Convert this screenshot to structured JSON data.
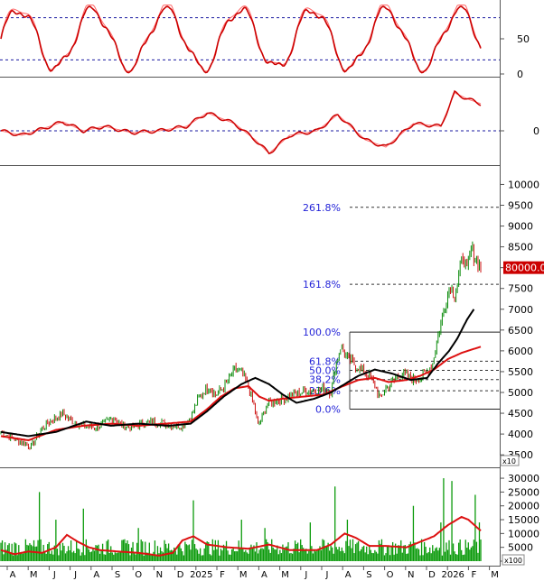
{
  "chart_data": {
    "type": "candlestick",
    "colors": {
      "up": "#0a8a0a",
      "down": "#cc1111",
      "ma_fast": "#dd1111",
      "ma_slow": "#000000",
      "volume": "#0a9a0a",
      "volume_ma": "#dd1111",
      "fib": "#2323d8",
      "guide": "#1a1aa0",
      "price_tag_bg": "#cc0000",
      "price_tag_text": "#ffffff"
    },
    "x_axis": {
      "labels": [
        "A",
        "M",
        "J",
        "J",
        "A",
        "S",
        "O",
        "N",
        "D",
        "2025",
        "F",
        "M",
        "A",
        "M",
        "J",
        "J",
        "A",
        "S",
        "O",
        "N",
        "D",
        "2026",
        "F",
        "M"
      ]
    },
    "stochastic": {
      "ylim": [
        0,
        100
      ],
      "ticks": [
        "50",
        "0"
      ],
      "guides": [
        80,
        20
      ]
    },
    "oscillator": {
      "ticks": [
        "0"
      ]
    },
    "price": {
      "ylim": [
        3200,
        10400
      ],
      "ticks": [
        "10000",
        "9500",
        "9000",
        "8500",
        "8000",
        "7500",
        "7000",
        "6500",
        "6000",
        "5500",
        "5000",
        "4500",
        "4000",
        "3500"
      ],
      "multiplier_label": "x10",
      "last_price_label": "80000.00",
      "last_price": 8000,
      "fib_levels": [
        {
          "label": "261.8%",
          "value": 9450
        },
        {
          "label": "161.8%",
          "value": 7600
        },
        {
          "label": "100.0%",
          "value": 6450
        },
        {
          "label": "61.8%",
          "value": 5750
        },
        {
          "label": "50.0%",
          "value": 5530
        },
        {
          "label": "38.2%",
          "value": 5310
        },
        {
          "label": "23.6%",
          "value": 5040
        },
        {
          "label": "0.0%",
          "value": 4600
        }
      ],
      "close_anchors": [
        [
          0,
          4050
        ],
        [
          12,
          3850
        ],
        [
          22,
          3700
        ],
        [
          30,
          4150
        ],
        [
          38,
          4350
        ],
        [
          45,
          4500
        ],
        [
          52,
          4300
        ],
        [
          60,
          4200
        ],
        [
          68,
          4150
        ],
        [
          75,
          4250
        ],
        [
          82,
          4400
        ],
        [
          88,
          4200
        ],
        [
          95,
          4150
        ],
        [
          102,
          4250
        ],
        [
          110,
          4300
        ],
        [
          118,
          4250
        ],
        [
          126,
          4200
        ],
        [
          132,
          4200
        ],
        [
          138,
          4400
        ],
        [
          143,
          4800
        ],
        [
          148,
          5050
        ],
        [
          152,
          5150
        ],
        [
          156,
          4950
        ],
        [
          160,
          5050
        ],
        [
          165,
          5250
        ],
        [
          170,
          5550
        ],
        [
          176,
          5450
        ],
        [
          180,
          5100
        ],
        [
          184,
          4700
        ],
        [
          187,
          4200
        ],
        [
          190,
          4400
        ],
        [
          194,
          4750
        ],
        [
          200,
          4800
        ],
        [
          206,
          4850
        ],
        [
          212,
          4950
        ],
        [
          218,
          5000
        ],
        [
          224,
          5050
        ],
        [
          230,
          5050
        ],
        [
          235,
          5100
        ],
        [
          240,
          5000
        ],
        [
          243,
          5600
        ],
        [
          247,
          6100
        ],
        [
          251,
          5850
        ],
        [
          256,
          5700
        ],
        [
          262,
          5550
        ],
        [
          268,
          5400
        ],
        [
          272,
          5150
        ],
        [
          276,
          4850
        ],
        [
          280,
          5100
        ],
        [
          285,
          5250
        ],
        [
          290,
          5450
        ],
        [
          295,
          5400
        ],
        [
          300,
          5300
        ],
        [
          305,
          5350
        ],
        [
          310,
          5500
        ],
        [
          314,
          5700
        ],
        [
          318,
          6400
        ],
        [
          321,
          6800
        ],
        [
          324,
          7200
        ],
        [
          327,
          7600
        ],
        [
          330,
          7300
        ],
        [
          333,
          7800
        ],
        [
          336,
          8300
        ],
        [
          339,
          7900
        ],
        [
          342,
          8450
        ],
        [
          345,
          8200
        ],
        [
          349,
          8000
        ]
      ],
      "ma_fast_anchors": [
        [
          0,
          3950
        ],
        [
          20,
          3850
        ],
        [
          40,
          4100
        ],
        [
          60,
          4200
        ],
        [
          80,
          4250
        ],
        [
          100,
          4200
        ],
        [
          120,
          4250
        ],
        [
          138,
          4300
        ],
        [
          150,
          4600
        ],
        [
          160,
          4900
        ],
        [
          170,
          5100
        ],
        [
          180,
          5150
        ],
        [
          188,
          4900
        ],
        [
          195,
          4800
        ],
        [
          205,
          4850
        ],
        [
          220,
          4900
        ],
        [
          235,
          4950
        ],
        [
          245,
          5100
        ],
        [
          260,
          5300
        ],
        [
          272,
          5350
        ],
        [
          282,
          5250
        ],
        [
          295,
          5300
        ],
        [
          305,
          5400
        ],
        [
          315,
          5550
        ],
        [
          325,
          5800
        ],
        [
          335,
          5950
        ],
        [
          349,
          6100
        ]
      ],
      "ma_slow_anchors": [
        [
          0,
          4050
        ],
        [
          20,
          3950
        ],
        [
          40,
          4050
        ],
        [
          62,
          4300
        ],
        [
          80,
          4200
        ],
        [
          100,
          4250
        ],
        [
          122,
          4200
        ],
        [
          138,
          4250
        ],
        [
          150,
          4550
        ],
        [
          162,
          4900
        ],
        [
          175,
          5200
        ],
        [
          185,
          5350
        ],
        [
          195,
          5200
        ],
        [
          205,
          4950
        ],
        [
          215,
          4750
        ],
        [
          228,
          4850
        ],
        [
          240,
          5000
        ],
        [
          250,
          5200
        ],
        [
          260,
          5400
        ],
        [
          272,
          5550
        ],
        [
          285,
          5450
        ],
        [
          298,
          5300
        ],
        [
          310,
          5350
        ],
        [
          318,
          5700
        ],
        [
          326,
          6000
        ],
        [
          332,
          6300
        ],
        [
          339,
          6750
        ],
        [
          344,
          7000
        ]
      ]
    },
    "volume": {
      "ylim": [
        0,
        31000
      ],
      "ticks": [
        "30000",
        "25000",
        "20000",
        "15000",
        "10000",
        "5000",
        "0"
      ],
      "multiplier_label": "x100",
      "spikes": [
        [
          28,
          25000
        ],
        [
          40,
          15000
        ],
        [
          60,
          19000
        ],
        [
          100,
          12000
        ],
        [
          140,
          22000
        ],
        [
          175,
          15000
        ],
        [
          192,
          12000
        ],
        [
          225,
          14000
        ],
        [
          243,
          27000
        ],
        [
          252,
          15000
        ],
        [
          300,
          20000
        ],
        [
          320,
          14000
        ],
        [
          322,
          30000
        ],
        [
          328,
          29000
        ],
        [
          345,
          24000
        ],
        [
          348,
          14000
        ]
      ],
      "ma_anchors": [
        [
          0,
          4000
        ],
        [
          10,
          2500
        ],
        [
          20,
          3500
        ],
        [
          30,
          3000
        ],
        [
          40,
          5000
        ],
        [
          48,
          9500
        ],
        [
          56,
          7000
        ],
        [
          64,
          5000
        ],
        [
          72,
          4000
        ],
        [
          85,
          3500
        ],
        [
          100,
          3000
        ],
        [
          115,
          2000
        ],
        [
          125,
          3000
        ],
        [
          132,
          7500
        ],
        [
          140,
          9000
        ],
        [
          150,
          6000
        ],
        [
          165,
          5000
        ],
        [
          180,
          4500
        ],
        [
          195,
          6000
        ],
        [
          210,
          4000
        ],
        [
          230,
          4000
        ],
        [
          240,
          6000
        ],
        [
          250,
          10000
        ],
        [
          258,
          8500
        ],
        [
          268,
          5500
        ],
        [
          280,
          5500
        ],
        [
          295,
          5000
        ],
        [
          305,
          7000
        ],
        [
          315,
          9000
        ],
        [
          325,
          13000
        ],
        [
          335,
          16000
        ],
        [
          340,
          15000
        ],
        [
          349,
          11000
        ]
      ]
    }
  }
}
